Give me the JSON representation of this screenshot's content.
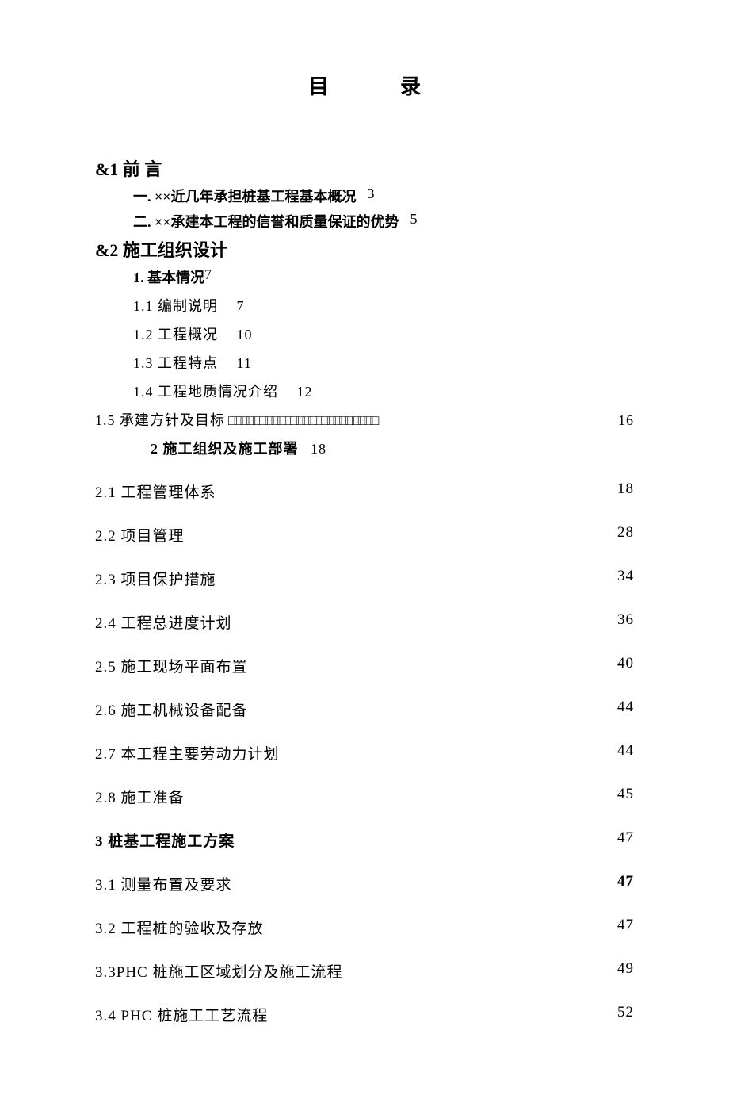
{
  "title_a": "目",
  "title_b": "录",
  "s1": {
    "head": "&1 前 言",
    "i1": {
      "text": "一. ××近几年承担桩基工程基本概况",
      "page": "3"
    },
    "i2": {
      "text": "二. ××承建本工程的信誉和质量保证的优势",
      "page": "5"
    }
  },
  "s2": {
    "head": "&2 施工组织设计",
    "b1": {
      "text": "1. 基本情况",
      "page": "7"
    },
    "p11": {
      "text": "1.1 编制说明",
      "page": "7"
    },
    "p12": {
      "text": "1.2 工程概况",
      "page": "10"
    },
    "p13": {
      "text": "1.3 工程特点",
      "page": "11"
    },
    "p14": {
      "text": "1.4 工程地质情况介绍",
      "page": "12"
    },
    "p15": {
      "text": "1.5 承建方针及目标",
      "dots": "□□□□□□□□□□□□□□□□□□□□□□□□",
      "page": "16"
    },
    "b2": {
      "text": "2 施工组织及施工部署",
      "page": "18"
    }
  },
  "rows": [
    {
      "text": "2.1 工程管理体系",
      "page": "18",
      "bold": false
    },
    {
      "text": "2.2 项目管理",
      "page": "28",
      "bold": false
    },
    {
      "text": "2.3 项目保护措施",
      "page": "34",
      "bold": false
    },
    {
      "text": "2.4 工程总进度计划",
      "page": "36",
      "bold": false
    },
    {
      "text": "2.5 施工现场平面布置",
      "page": "40",
      "bold": false
    },
    {
      "text": "2.6 施工机械设备配备",
      "page": "44",
      "bold": false
    },
    {
      "text": "2.7 本工程主要劳动力计划",
      "page": "44",
      "bold": false
    },
    {
      "text": "2.8 施工准备",
      "page": "45",
      "bold": false
    },
    {
      "text": "3 桩基工程施工方案",
      "page": "47",
      "bold": true,
      "pgbold": false
    },
    {
      "text": "3.1 测量布置及要求",
      "page": "47",
      "bold": false,
      "pgbold": true
    },
    {
      "text": "3.2 工程桩的验收及存放",
      "page": "47",
      "bold": false
    },
    {
      "text": "3.3PHC 桩施工区域划分及施工流程",
      "page": "49",
      "bold": false
    },
    {
      "text": "3.4 PHC 桩施工工艺流程",
      "page": "52",
      "bold": false
    }
  ]
}
